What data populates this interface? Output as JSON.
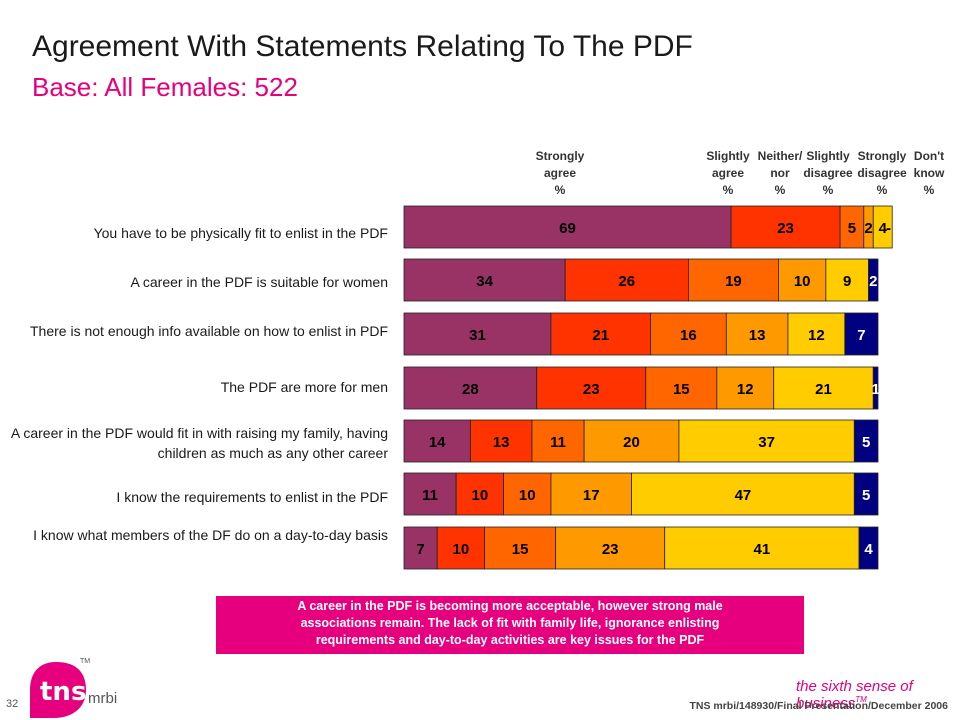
{
  "page": {
    "title": "Agreement With Statements Relating To The PDF",
    "subtitle": "Base:  All Females:  522",
    "note_line1": "A career in the PDF is becoming more acceptable, however strong male",
    "note_line2": "associations remain.  The lack of fit with family life, ignorance enlisting",
    "note_line3": "requirements and day-to-day activities are key issues for the PDF",
    "page_number": "32",
    "footer": "TNS mrbi/148930/Final Presentation/December 2006",
    "tagline": "the sixth sense of business",
    "tagline_tm": "TM",
    "logo_text": "tns",
    "logo_sub": "mrbi",
    "logo_tm": "TM"
  },
  "headers": {
    "strongly_agree": [
      "Strongly",
      "agree",
      "%"
    ],
    "slightly_agree": [
      "Slightly",
      "agree",
      "%"
    ],
    "neither": [
      "Neither/",
      "nor",
      "%"
    ],
    "slightly_disagree": [
      "Slightly",
      "disagree",
      "%"
    ],
    "strongly_disagree": [
      "Strongly",
      "disagree",
      "%"
    ],
    "dont_know": [
      "Don't",
      "know",
      "%"
    ]
  },
  "chart_data": {
    "type": "bar",
    "orientation": "horizontal-stacked",
    "categories": [
      "You have to be physically fit to enlist in the PDF",
      "A career in the PDF is suitable for women",
      "There is not enough info available on how to enlist in PDF",
      "The PDF are more for men",
      "A career in the PDF would fit in with raising my family, having children as much as any other career",
      "I know the requirements to enlist in the PDF",
      "I know what members of the DF do on a day-to-day basis"
    ],
    "series": [
      {
        "name": "Strongly agree",
        "color": "#993366",
        "values": [
          69,
          34,
          31,
          28,
          14,
          11,
          7
        ]
      },
      {
        "name": "Slightly agree",
        "color": "#ff3300",
        "values": [
          23,
          26,
          21,
          23,
          13,
          10,
          10
        ]
      },
      {
        "name": "Neither/ nor",
        "color": "#ff6600",
        "values": [
          5,
          19,
          16,
          15,
          11,
          10,
          15
        ]
      },
      {
        "name": "Slightly disagree",
        "color": "#ff9900",
        "values": [
          2,
          10,
          13,
          12,
          20,
          17,
          23
        ]
      },
      {
        "name": "Strongly disagree",
        "color": "#ffcc00",
        "values": [
          4,
          9,
          12,
          21,
          37,
          47,
          41
        ]
      },
      {
        "name": "Don't know",
        "color": "#000080",
        "values": [
          null,
          2,
          7,
          1,
          5,
          5,
          4
        ]
      }
    ],
    "extra_labels": [
      [
        "-"
      ],
      [],
      [],
      [],
      [],
      [],
      []
    ],
    "xlim": [
      0,
      100
    ]
  }
}
